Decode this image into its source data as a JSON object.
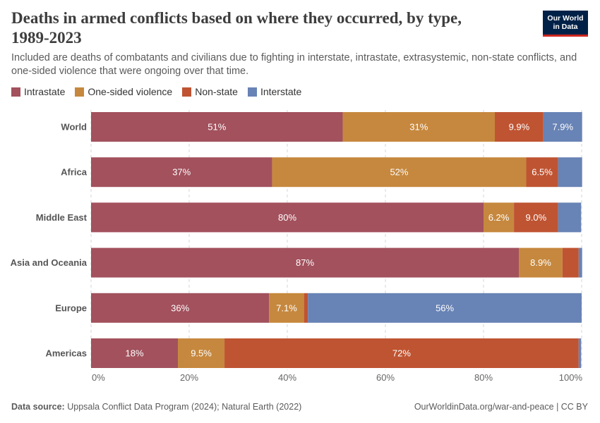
{
  "header": {
    "title": "Deaths in armed conflicts based on where they occurred, by type, 1989-2023",
    "subtitle": "Included are deaths of combatants and civilians due to fighting in interstate, intrastate, extrasystemic, non-state conflicts, and one-sided violence that were ongoing over that time.",
    "logo_line1": "Our World",
    "logo_line2": "in Data"
  },
  "footer": {
    "source_label": "Data source:",
    "source_text": "Uppsala Conflict Data Program (2024); Natural Earth (2022)",
    "credit": "OurWorldinData.org/war-and-peace | CC BY"
  },
  "colors": {
    "intrastate": "#a2515d",
    "one_sided": "#c6883e",
    "non_state": "#bf5432",
    "interstate": "#6883b5"
  },
  "chart_data": {
    "type": "bar",
    "orientation": "horizontal",
    "stacked": true,
    "title": "Deaths in armed conflicts based on where they occurred, by type, 1989-2023",
    "xlabel": "",
    "ylabel": "",
    "xlim": [
      0,
      100
    ],
    "grid": true,
    "legend_position": "top-left",
    "categories": [
      "World",
      "Africa",
      "Middle East",
      "Asia and Oceania",
      "Europe",
      "Americas"
    ],
    "xticks": [
      "0%",
      "20%",
      "40%",
      "60%",
      "80%",
      "100%"
    ],
    "series": [
      {
        "name": "Intrastate",
        "key": "intrastate",
        "values": [
          51.3,
          36.9,
          80.0,
          87.2,
          36.3,
          17.7
        ],
        "labels": [
          "51%",
          "37%",
          "80%",
          "87%",
          "36%",
          "18%"
        ]
      },
      {
        "name": "One-sided violence",
        "key": "one_sided",
        "values": [
          31.0,
          51.8,
          6.2,
          8.9,
          7.1,
          9.5
        ],
        "labels": [
          "31%",
          "52%",
          "6.2%",
          "8.9%",
          "7.1%",
          "9.5%"
        ]
      },
      {
        "name": "Non-state",
        "key": "non_state",
        "values": [
          9.9,
          6.5,
          9.0,
          3.3,
          0.8,
          72.2
        ],
        "labels": [
          "9.9%",
          "6.5%",
          "9.0%",
          "",
          "",
          "72%"
        ]
      },
      {
        "name": "Interstate",
        "key": "interstate",
        "values": [
          7.9,
          4.9,
          4.7,
          0.7,
          55.8,
          0.5
        ],
        "labels": [
          "7.9%",
          "",
          "",
          "",
          "56%",
          ""
        ]
      }
    ]
  }
}
